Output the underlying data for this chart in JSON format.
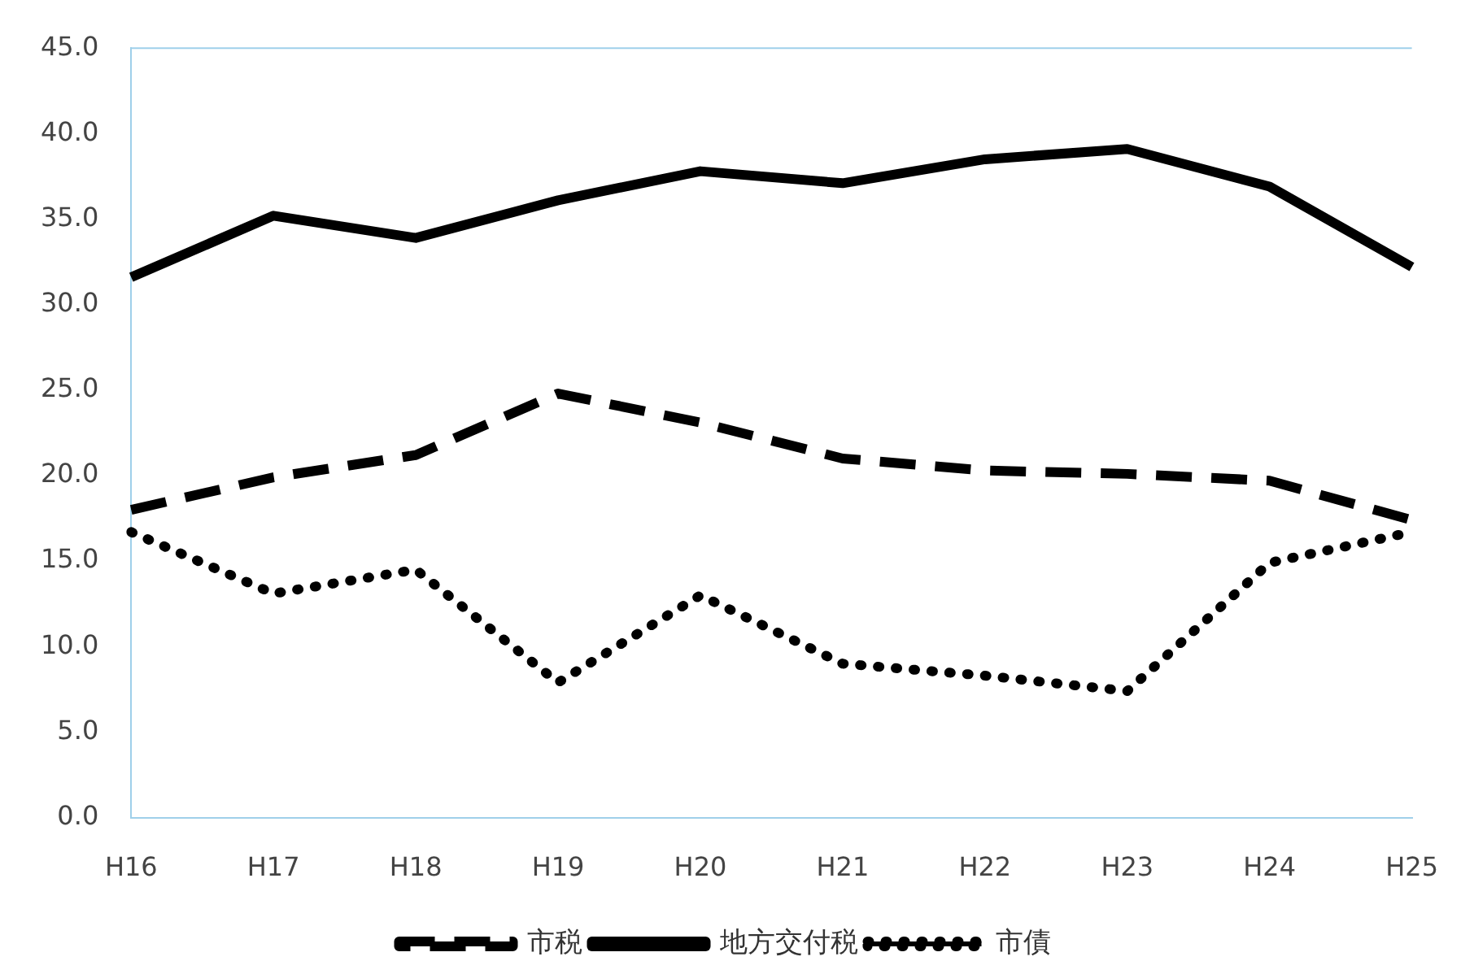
{
  "chart_data": {
    "type": "line",
    "categories": [
      "H16",
      "H17",
      "H18",
      "H19",
      "H20",
      "H21",
      "H22",
      "H23",
      "H24",
      "H25"
    ],
    "series": [
      {
        "name": "市税",
        "color": "#000000",
        "line_style": "dashed",
        "values": [
          18.0,
          19.9,
          21.2,
          24.8,
          23.1,
          21.0,
          20.3,
          20.1,
          19.7,
          17.4
        ]
      },
      {
        "name": "地方交付税",
        "color": "#000000",
        "line_style": "solid",
        "values": [
          31.6,
          35.2,
          33.9,
          36.1,
          37.8,
          37.1,
          38.5,
          39.1,
          36.9,
          32.2
        ]
      },
      {
        "name": "市債",
        "color": "#000000",
        "line_style": "dotted",
        "values": [
          16.7,
          13.1,
          14.5,
          7.9,
          13.0,
          9.0,
          8.3,
          7.4,
          14.9,
          16.7
        ]
      }
    ],
    "ylim": [
      0,
      45
    ],
    "yticks": [
      {
        "value": 0,
        "label": "0.0"
      },
      {
        "value": 5,
        "label": "5.0"
      },
      {
        "value": 10,
        "label": "10.0"
      },
      {
        "value": 15,
        "label": "15.0"
      },
      {
        "value": 20,
        "label": "20.0"
      },
      {
        "value": 25,
        "label": "25.0"
      },
      {
        "value": 30,
        "label": "30.0"
      },
      {
        "value": 35,
        "label": "35.0"
      },
      {
        "value": 40,
        "label": "40.0"
      },
      {
        "value": 45,
        "label": "45.0"
      }
    ],
    "grid": false,
    "legend": "bottom",
    "marker": "none"
  }
}
